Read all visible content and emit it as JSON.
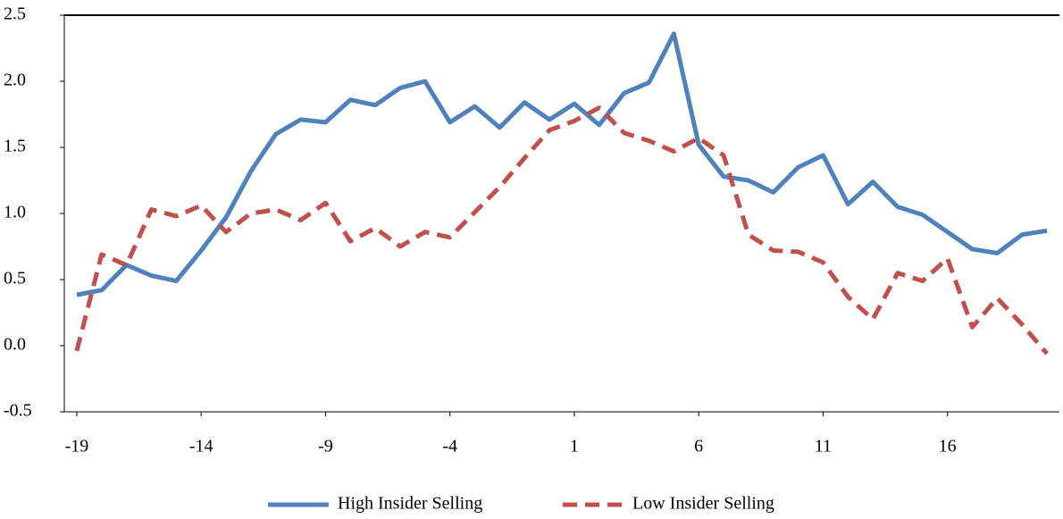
{
  "chart_data": {
    "type": "line",
    "x": [
      -19,
      -18,
      -17,
      -16,
      -15,
      -14,
      -13,
      -12,
      -11,
      -10,
      -9,
      -8,
      -7,
      -6,
      -5,
      -4,
      -3,
      -2,
      -1,
      0,
      1,
      2,
      3,
      4,
      5,
      6,
      7,
      8,
      9,
      10,
      11,
      12,
      13,
      14,
      15,
      16,
      17,
      18,
      19,
      20
    ],
    "series": [
      {
        "name": "High Insider Selling",
        "color": "#4f81bd",
        "dash": false,
        "values": [
          0.385,
          0.42,
          0.61,
          0.53,
          0.49,
          0.72,
          0.97,
          1.32,
          1.6,
          1.71,
          1.69,
          1.86,
          1.82,
          1.95,
          2.0,
          1.69,
          1.81,
          1.65,
          1.84,
          1.71,
          1.83,
          1.67,
          1.91,
          1.99,
          2.36,
          1.52,
          1.28,
          1.25,
          1.16,
          1.35,
          1.44,
          1.07,
          1.24,
          1.05,
          0.99,
          0.86,
          0.73,
          0.7,
          0.84,
          0.87
        ]
      },
      {
        "name": "Low Insider Selling",
        "color": "#c0504d",
        "dash": true,
        "values": [
          -0.04,
          0.69,
          0.61,
          1.03,
          0.98,
          1.06,
          0.86,
          1.0,
          1.03,
          0.95,
          1.08,
          0.79,
          0.89,
          0.75,
          0.86,
          0.82,
          1.01,
          1.2,
          1.42,
          1.63,
          1.7,
          1.8,
          1.61,
          1.55,
          1.47,
          1.57,
          1.44,
          0.84,
          0.72,
          0.71,
          0.63,
          0.37,
          0.2,
          0.55,
          0.49,
          0.66,
          0.14,
          0.36,
          0.16,
          -0.06
        ]
      }
    ],
    "xlim": [
      -19.5,
      20.5
    ],
    "xticks": [
      -19,
      -14,
      -9,
      -4,
      1,
      6,
      11,
      16
    ],
    "ylim": [
      -0.5,
      2.5
    ],
    "yticks": [
      {
        "value": 2.5,
        "label": "2.5"
      },
      {
        "value": 2,
        "label": "2.0"
      },
      {
        "value": 1.5,
        "label": "1.5"
      },
      {
        "value": 1,
        "label": "1.0"
      },
      {
        "value": 0.5,
        "label": "0.5"
      },
      {
        "value": 0,
        "label": "0.0"
      },
      {
        "value": -0.5,
        "label": "-0.5"
      }
    ],
    "legend": "bottom"
  }
}
